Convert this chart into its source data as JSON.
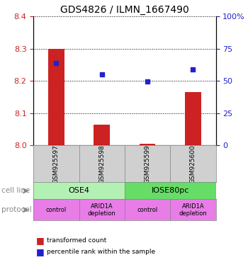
{
  "title": "GDS4826 / ILMN_1667490",
  "samples": [
    "GSM925597",
    "GSM925598",
    "GSM925599",
    "GSM925600"
  ],
  "red_values": [
    8.3,
    8.065,
    8.005,
    8.165
  ],
  "blue_values": [
    8.255,
    8.22,
    8.198,
    8.235
  ],
  "ylim_left": [
    8.0,
    8.4
  ],
  "ylim_right": [
    0,
    100
  ],
  "yticks_left": [
    8.0,
    8.1,
    8.2,
    8.3,
    8.4
  ],
  "yticks_right": [
    0,
    25,
    50,
    75,
    100
  ],
  "ytick_labels_right": [
    "0",
    "25",
    "50",
    "75",
    "100%"
  ],
  "cell_lines": [
    "OSE4",
    "IOSE80pc"
  ],
  "cell_line_spans": [
    [
      0,
      2
    ],
    [
      2,
      4
    ]
  ],
  "cell_line_color_light": "#b3f0b3",
  "cell_line_color_dark": "#66dd66",
  "protocols": [
    "control",
    "ARID1A\ndepletion",
    "control",
    "ARID1A\ndepletion"
  ],
  "protocol_color": "#e87de8",
  "sample_box_color": "#d0d0d0",
  "bar_color_red": "#cc2222",
  "dot_color_blue": "#2222cc",
  "label_cell_line": "cell line",
  "label_protocol": "protocol",
  "legend_red": "transformed count",
  "legend_blue": "percentile rank within the sample"
}
